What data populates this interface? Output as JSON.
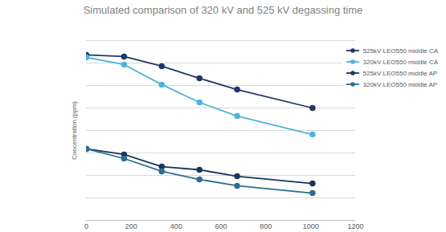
{
  "chart_data": {
    "type": "line",
    "title": "Simulated comparison of 320 kV and 525 kV degassing time",
    "y_label": "Concentration (ppm)",
    "x": [
      0,
      168,
      336,
      504,
      672,
      1008
    ],
    "series": [
      {
        "name": "525kV LEO550 middle CA",
        "color": "#1f3864",
        "marker": "circle",
        "values": [
          7.36,
          7.29,
          6.86,
          6.32,
          5.82,
          5.0
        ]
      },
      {
        "name": "320kV LEO550 middle CA",
        "color": "#4fb3d9",
        "marker": "circle",
        "values": [
          7.25,
          6.93,
          6.04,
          5.25,
          4.64,
          3.82
        ]
      },
      {
        "name": "525kV LEO550 middle AP",
        "color": "#17375e",
        "marker": "circle",
        "values": [
          3.18,
          2.93,
          2.39,
          2.25,
          1.96,
          1.64
        ]
      },
      {
        "name": "320kV LEO550 middle AP",
        "color": "#2f6e8e",
        "marker": "circle",
        "values": [
          3.18,
          2.75,
          2.18,
          1.82,
          1.54,
          1.21
        ]
      }
    ],
    "xlim": [
      0,
      1200
    ],
    "xticks": [
      0,
      200,
      400,
      600,
      800,
      1000,
      1200
    ],
    "ylim": [
      0,
      8
    ],
    "yticks": [
      0,
      1,
      2,
      3,
      4,
      5,
      6,
      7,
      8
    ],
    "grid": true,
    "legend": "upper right",
    "tick_labels": "x"
  }
}
